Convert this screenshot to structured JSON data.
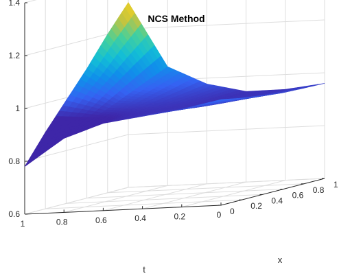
{
  "chart_data": {
    "type": "surface",
    "title": "NCS Method",
    "xlabel": "t",
    "ylabel": "x",
    "zlabel": "",
    "t_ticks": [
      "1",
      "0.8",
      "0.6",
      "0.4",
      "0.2",
      "0"
    ],
    "x_ticks": [
      "0",
      "0.2",
      "0.4",
      "0.6",
      "0.8",
      "1"
    ],
    "z_ticks": [
      "0.6",
      "0.8",
      "1",
      "1.2",
      "1.4"
    ],
    "t_range": [
      0,
      1
    ],
    "x_range": [
      0,
      1
    ],
    "z_range": [
      0.6,
      1.4
    ],
    "grid": true,
    "colormap": "parula",
    "colors": {
      "low": "#3e26a8",
      "mid": "#13bed6",
      "high": "#f9d31c",
      "grid": "#dddddd",
      "axis": "#262626"
    },
    "surface": {
      "t": [
        0,
        0.2,
        0.4,
        0.6,
        0.8,
        1
      ],
      "x": [
        0,
        0.2,
        0.4,
        0.6,
        0.8,
        1
      ],
      "z": [
        [
          1.0,
          0.985,
          0.975,
          0.965,
          0.962,
          0.96
        ],
        [
          0.97,
          0.96,
          0.953,
          0.948,
          0.945,
          0.944
        ],
        [
          0.95,
          0.946,
          0.943,
          0.942,
          0.942,
          0.943
        ],
        [
          0.93,
          0.937,
          0.945,
          0.955,
          0.965,
          0.978
        ],
        [
          0.88,
          0.912,
          0.945,
          0.98,
          1.015,
          1.05
        ],
        [
          0.78,
          0.89,
          0.99,
          1.09,
          1.2,
          1.3
        ]
      ]
    }
  }
}
